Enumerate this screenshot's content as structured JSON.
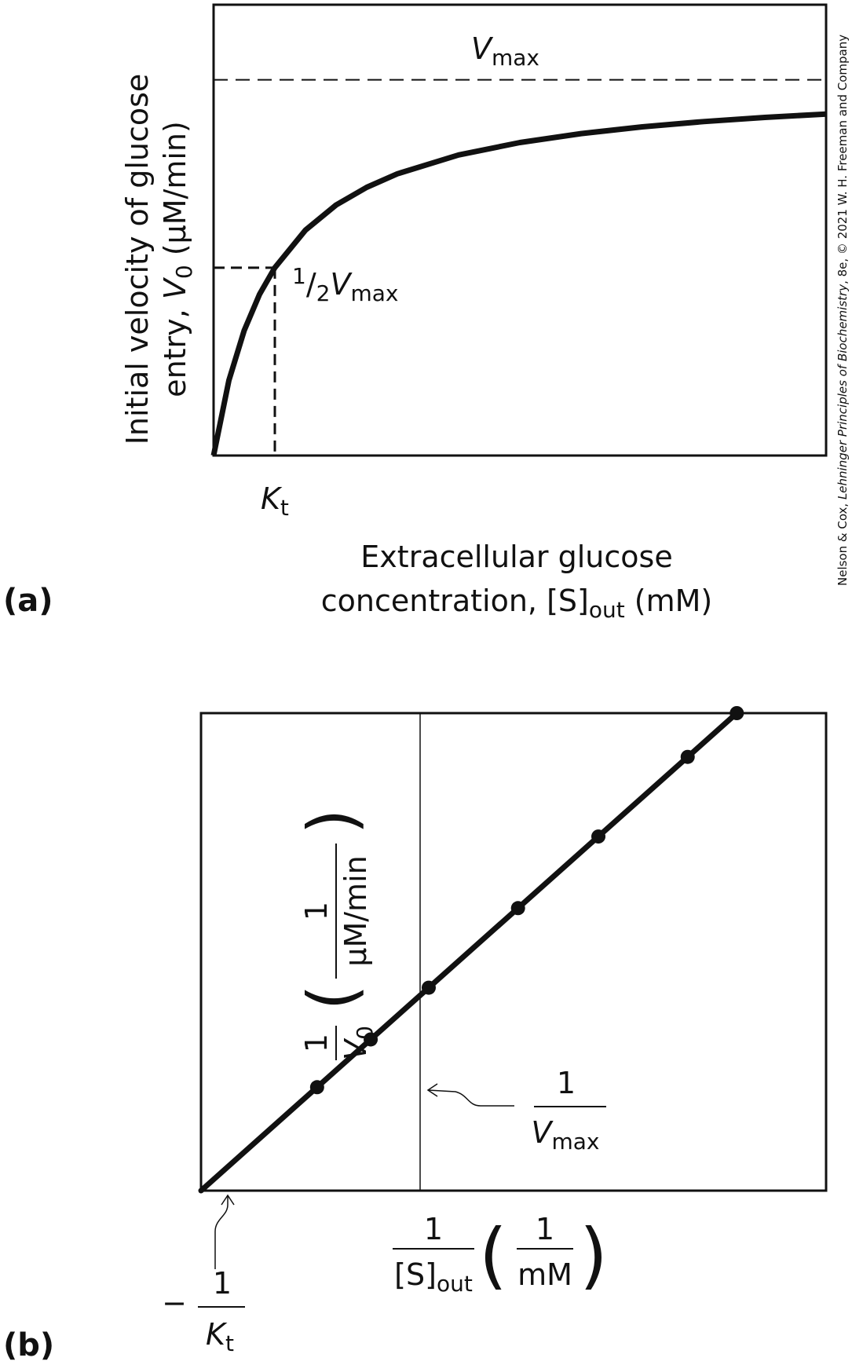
{
  "credit": {
    "prefix": "Nelson & Cox, ",
    "book": "Lehninger Principles of Biochemistry",
    "suffix": ", 8e, © 2021 W. H. Freeman and Company"
  },
  "chart_data": [
    {
      "panel": "(a)",
      "type": "line",
      "axis_scale": {
        "x_max": 10,
        "y_max": 1.2
      },
      "vmax": 1.0,
      "kt": 1.0,
      "curve": {
        "x": [
          0,
          0.25,
          0.5,
          0.75,
          1,
          1.5,
          2,
          2.5,
          3,
          4,
          5,
          6,
          7,
          8,
          9,
          10
        ],
        "y": [
          0,
          0.2,
          0.333,
          0.429,
          0.5,
          0.6,
          0.667,
          0.714,
          0.75,
          0.8,
          0.833,
          0.857,
          0.875,
          0.889,
          0.9,
          0.909
        ]
      },
      "labels": {
        "vmax_V": "V",
        "vmax_sub": "max",
        "half_prefix": "1",
        "half_denom": "2",
        "half_V": "V",
        "half_sub": "max",
        "kt_K": "K",
        "kt_sub": "t",
        "ylabel_line1": "Initial velocity of glucose",
        "ylabel_line2_pre": "entry, ",
        "ylabel_line2_V": "V",
        "ylabel_line2_sub": "0",
        "ylabel_line2_unit": " (μM/min)",
        "xlabel_line1": "Extracellular glucose",
        "xlabel_line2_pre": "concentration, [S]",
        "xlabel_line2_sub": "out",
        "xlabel_line2_unit": " (mM)"
      }
    },
    {
      "panel": "(b)",
      "type": "scatter",
      "axis_scale": {
        "x_min": -0.1,
        "x_max": 0.6,
        "y_max": 3.0
      },
      "line": {
        "slope": 5.0,
        "intercept": 0.5,
        "x_from": -0.1,
        "x_to": 0.5
      },
      "points": [
        {
          "x": 0.03,
          "y": 0.65
        },
        {
          "x": 0.09,
          "y": 0.95
        },
        {
          "x": 0.155,
          "y": 1.275
        },
        {
          "x": 0.255,
          "y": 1.775
        },
        {
          "x": 0.345,
          "y": 2.225
        },
        {
          "x": 0.445,
          "y": 2.725
        }
      ],
      "labels": {
        "yfrac_num": "1",
        "yfrac_V": "V",
        "yfrac_sub": "0",
        "yunit_num": "1",
        "yunit_den": "μM/min",
        "vint_num": "1",
        "vint_V": "V",
        "vint_sub": "max",
        "xfrac_num": "1",
        "xfrac_den": "[S]",
        "xfrac_sub": "out",
        "xunit_num": "1",
        "xunit_den": "mM",
        "kint_minus": "−",
        "kint_num": "1",
        "kint_K": "K",
        "kint_sub": "t"
      }
    }
  ]
}
